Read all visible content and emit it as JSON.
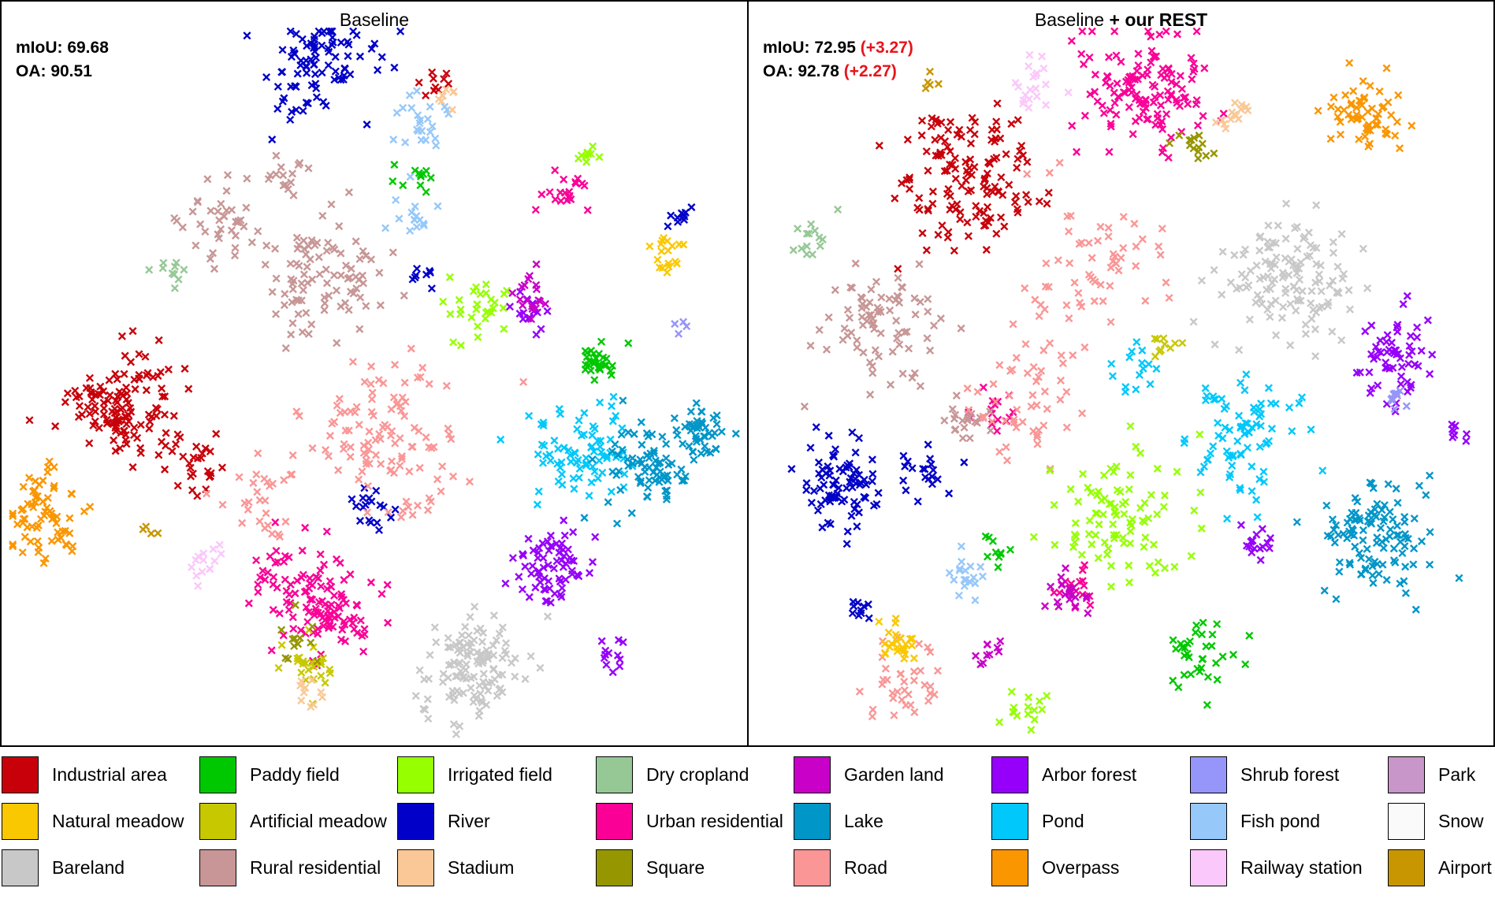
{
  "panels": [
    {
      "title_plain": "Baseline",
      "title_bold": "",
      "miou_label": "mIoU: 69.68",
      "miou_delta": "",
      "oa_label": "OA: 90.51",
      "oa_delta": ""
    },
    {
      "title_plain": "Baseline ",
      "title_bold": "+ our REST",
      "miou_label": "mIoU: 72.95",
      "miou_delta": "(+3.27)",
      "oa_label": "OA: 92.78",
      "oa_delta": "(+2.27)"
    }
  ],
  "delta_color": "#e8141b",
  "chart_data": {
    "type": "scatter",
    "marker": "x",
    "description_source": "t-SNE style feature embeddings; no axes, ticks or grid",
    "grid": false,
    "axes_visible": false,
    "legend_position": "bottom",
    "classes": [
      {
        "name": "Industrial area",
        "color": "#c8000a"
      },
      {
        "name": "Paddy field",
        "color": "#00c800"
      },
      {
        "name": "Irrigated field",
        "color": "#96ff00"
      },
      {
        "name": "Dry cropland",
        "color": "#96c896"
      },
      {
        "name": "Garden land",
        "color": "#c800c8"
      },
      {
        "name": "Arbor forest",
        "color": "#9600fa"
      },
      {
        "name": "Shrub forest",
        "color": "#9696fa"
      },
      {
        "name": "Park",
        "color": "#c896c8"
      },
      {
        "name": "Natural meadow",
        "color": "#fac800"
      },
      {
        "name": "Artificial meadow",
        "color": "#c8c800"
      },
      {
        "name": "River",
        "color": "#0000c8"
      },
      {
        "name": "Urban residential",
        "color": "#fa0096"
      },
      {
        "name": "Lake",
        "color": "#0096c8"
      },
      {
        "name": "Pond",
        "color": "#00c8fa"
      },
      {
        "name": "Fish pond",
        "color": "#96c8fa"
      },
      {
        "name": "Snow",
        "color": "#fafafa"
      },
      {
        "name": "Bareland",
        "color": "#c8c8c8"
      },
      {
        "name": "Rural residential",
        "color": "#c89696"
      },
      {
        "name": "Stadium",
        "color": "#fac896"
      },
      {
        "name": "Square",
        "color": "#969600"
      },
      {
        "name": "Road",
        "color": "#fa9696"
      },
      {
        "name": "Overpass",
        "color": "#fa9600"
      },
      {
        "name": "Railway station",
        "color": "#fac8fa"
      },
      {
        "name": "Airport",
        "color": "#c89600"
      }
    ],
    "panels": [
      {
        "name": "Baseline",
        "clusters": [
          {
            "class": "Industrial area",
            "x": 0.16,
            "y": 0.55,
            "spread": 0.035,
            "n": 130
          },
          {
            "class": "Industrial area",
            "x": 0.26,
            "y": 0.62,
            "spread": 0.02,
            "n": 25
          },
          {
            "class": "Industrial area",
            "x": 0.58,
            "y": 0.11,
            "spread": 0.012,
            "n": 10
          },
          {
            "class": "Overpass",
            "x": 0.06,
            "y": 0.69,
            "spread": 0.028,
            "n": 70
          },
          {
            "class": "Airport",
            "x": 0.2,
            "y": 0.71,
            "spread": 0.006,
            "n": 4
          },
          {
            "class": "Railway station",
            "x": 0.27,
            "y": 0.75,
            "spread": 0.012,
            "n": 14
          },
          {
            "class": "River",
            "x": 0.43,
            "y": 0.09,
            "spread": 0.035,
            "n": 90
          },
          {
            "class": "River",
            "x": 0.5,
            "y": 0.68,
            "spread": 0.015,
            "n": 18
          },
          {
            "class": "River",
            "x": 0.91,
            "y": 0.29,
            "spread": 0.01,
            "n": 10
          },
          {
            "class": "River",
            "x": 0.56,
            "y": 0.37,
            "spread": 0.01,
            "n": 8
          },
          {
            "class": "Urban residential",
            "x": 0.41,
            "y": 0.79,
            "spread": 0.04,
            "n": 100
          },
          {
            "class": "Urban residential",
            "x": 0.46,
            "y": 0.84,
            "spread": 0.02,
            "n": 25
          },
          {
            "class": "Urban residential",
            "x": 0.76,
            "y": 0.26,
            "spread": 0.015,
            "n": 20
          },
          {
            "class": "Bareland",
            "x": 0.63,
            "y": 0.9,
            "spread": 0.035,
            "n": 120
          },
          {
            "class": "Arbor forest",
            "x": 0.74,
            "y": 0.76,
            "spread": 0.03,
            "n": 70
          },
          {
            "class": "Arbor forest",
            "x": 0.82,
            "y": 0.87,
            "spread": 0.01,
            "n": 12
          },
          {
            "class": "Arbor forest",
            "x": 0.71,
            "y": 0.42,
            "spread": 0.015,
            "n": 14
          },
          {
            "class": "Pond",
            "x": 0.78,
            "y": 0.6,
            "spread": 0.035,
            "n": 80
          },
          {
            "class": "Lake",
            "x": 0.87,
            "y": 0.62,
            "spread": 0.028,
            "n": 80
          },
          {
            "class": "Lake",
            "x": 0.94,
            "y": 0.58,
            "spread": 0.018,
            "n": 40
          },
          {
            "class": "Paddy field",
            "x": 0.8,
            "y": 0.48,
            "spread": 0.012,
            "n": 30
          },
          {
            "class": "Paddy field",
            "x": 0.56,
            "y": 0.24,
            "spread": 0.015,
            "n": 12
          },
          {
            "class": "Natural meadow",
            "x": 0.89,
            "y": 0.34,
            "spread": 0.012,
            "n": 18
          },
          {
            "class": "Irrigated field",
            "x": 0.64,
            "y": 0.41,
            "spread": 0.02,
            "n": 30
          },
          {
            "class": "Irrigated field",
            "x": 0.79,
            "y": 0.21,
            "spread": 0.01,
            "n": 10
          },
          {
            "class": "Rural residential",
            "x": 0.43,
            "y": 0.38,
            "spread": 0.045,
            "n": 90
          },
          {
            "class": "Rural residential",
            "x": 0.3,
            "y": 0.3,
            "spread": 0.03,
            "n": 40
          },
          {
            "class": "Rural residential",
            "x": 0.38,
            "y": 0.24,
            "spread": 0.015,
            "n": 15
          },
          {
            "class": "Road",
            "x": 0.52,
            "y": 0.58,
            "spread": 0.05,
            "n": 110
          },
          {
            "class": "Road",
            "x": 0.35,
            "y": 0.66,
            "spread": 0.03,
            "n": 30
          },
          {
            "class": "Fish pond",
            "x": 0.57,
            "y": 0.17,
            "spread": 0.02,
            "n": 25
          },
          {
            "class": "Fish pond",
            "x": 0.55,
            "y": 0.3,
            "spread": 0.015,
            "n": 14
          },
          {
            "class": "Artificial meadow",
            "x": 0.41,
            "y": 0.89,
            "spread": 0.018,
            "n": 25
          },
          {
            "class": "Stadium",
            "x": 0.41,
            "y": 0.93,
            "spread": 0.01,
            "n": 10
          },
          {
            "class": "Stadium",
            "x": 0.6,
            "y": 0.13,
            "spread": 0.01,
            "n": 8
          },
          {
            "class": "Garden land",
            "x": 0.71,
            "y": 0.39,
            "spread": 0.015,
            "n": 18
          },
          {
            "class": "Dry cropland",
            "x": 0.23,
            "y": 0.37,
            "spread": 0.012,
            "n": 10
          },
          {
            "class": "Shrub forest",
            "x": 0.91,
            "y": 0.44,
            "spread": 0.006,
            "n": 4
          },
          {
            "class": "Square",
            "x": 0.4,
            "y": 0.86,
            "spread": 0.015,
            "n": 12
          }
        ]
      },
      {
        "name": "Baseline + our REST",
        "clusters": [
          {
            "class": "Industrial area",
            "x": 0.3,
            "y": 0.23,
            "spread": 0.045,
            "n": 140
          },
          {
            "class": "Urban residential",
            "x": 0.53,
            "y": 0.12,
            "spread": 0.045,
            "n": 130
          },
          {
            "class": "Urban residential",
            "x": 0.33,
            "y": 0.55,
            "spread": 0.015,
            "n": 15
          },
          {
            "class": "Urban residential",
            "x": 0.44,
            "y": 0.79,
            "spread": 0.015,
            "n": 15
          },
          {
            "class": "Railway station",
            "x": 0.38,
            "y": 0.11,
            "spread": 0.015,
            "n": 20
          },
          {
            "class": "Airport",
            "x": 0.24,
            "y": 0.11,
            "spread": 0.006,
            "n": 5
          },
          {
            "class": "Overpass",
            "x": 0.83,
            "y": 0.15,
            "spread": 0.025,
            "n": 60
          },
          {
            "class": "Stadium",
            "x": 0.65,
            "y": 0.15,
            "spread": 0.012,
            "n": 14
          },
          {
            "class": "Square",
            "x": 0.6,
            "y": 0.19,
            "spread": 0.012,
            "n": 14
          },
          {
            "class": "Bareland",
            "x": 0.72,
            "y": 0.37,
            "spread": 0.045,
            "n": 130
          },
          {
            "class": "Rural residential",
            "x": 0.18,
            "y": 0.43,
            "spread": 0.04,
            "n": 80
          },
          {
            "class": "Rural residential",
            "x": 0.29,
            "y": 0.56,
            "spread": 0.02,
            "n": 20
          },
          {
            "class": "Road",
            "x": 0.37,
            "y": 0.53,
            "spread": 0.04,
            "n": 50
          },
          {
            "class": "Road",
            "x": 0.46,
            "y": 0.36,
            "spread": 0.05,
            "n": 60
          },
          {
            "class": "Road",
            "x": 0.2,
            "y": 0.91,
            "spread": 0.03,
            "n": 35
          },
          {
            "class": "Arbor forest",
            "x": 0.87,
            "y": 0.48,
            "spread": 0.03,
            "n": 60
          },
          {
            "class": "Arbor forest",
            "x": 0.68,
            "y": 0.72,
            "spread": 0.015,
            "n": 16
          },
          {
            "class": "Arbor forest",
            "x": 0.95,
            "y": 0.58,
            "spread": 0.008,
            "n": 8
          },
          {
            "class": "Pond",
            "x": 0.66,
            "y": 0.59,
            "spread": 0.04,
            "n": 80
          },
          {
            "class": "Pond",
            "x": 0.52,
            "y": 0.5,
            "spread": 0.02,
            "n": 15
          },
          {
            "class": "Lake",
            "x": 0.84,
            "y": 0.72,
            "spread": 0.04,
            "n": 110
          },
          {
            "class": "River",
            "x": 0.12,
            "y": 0.65,
            "spread": 0.03,
            "n": 80
          },
          {
            "class": "River",
            "x": 0.24,
            "y": 0.63,
            "spread": 0.02,
            "n": 20
          },
          {
            "class": "River",
            "x": 0.15,
            "y": 0.82,
            "spread": 0.01,
            "n": 10
          },
          {
            "class": "Natural meadow",
            "x": 0.2,
            "y": 0.86,
            "spread": 0.015,
            "n": 25
          },
          {
            "class": "Irrigated field",
            "x": 0.5,
            "y": 0.7,
            "spread": 0.05,
            "n": 90
          },
          {
            "class": "Irrigated field",
            "x": 0.37,
            "y": 0.95,
            "spread": 0.015,
            "n": 15
          },
          {
            "class": "Paddy field",
            "x": 0.6,
            "y": 0.88,
            "spread": 0.02,
            "n": 35
          },
          {
            "class": "Paddy field",
            "x": 0.33,
            "y": 0.74,
            "spread": 0.012,
            "n": 10
          },
          {
            "class": "Garden land",
            "x": 0.43,
            "y": 0.8,
            "spread": 0.015,
            "n": 20
          },
          {
            "class": "Garden land",
            "x": 0.32,
            "y": 0.88,
            "spread": 0.01,
            "n": 10
          },
          {
            "class": "Fish pond",
            "x": 0.29,
            "y": 0.77,
            "spread": 0.015,
            "n": 18
          },
          {
            "class": "Dry cropland",
            "x": 0.08,
            "y": 0.32,
            "spread": 0.015,
            "n": 14
          },
          {
            "class": "Shrub forest",
            "x": 0.87,
            "y": 0.53,
            "spread": 0.012,
            "n": 10
          },
          {
            "class": "Artificial meadow",
            "x": 0.56,
            "y": 0.47,
            "spread": 0.01,
            "n": 10
          }
        ]
      }
    ]
  }
}
